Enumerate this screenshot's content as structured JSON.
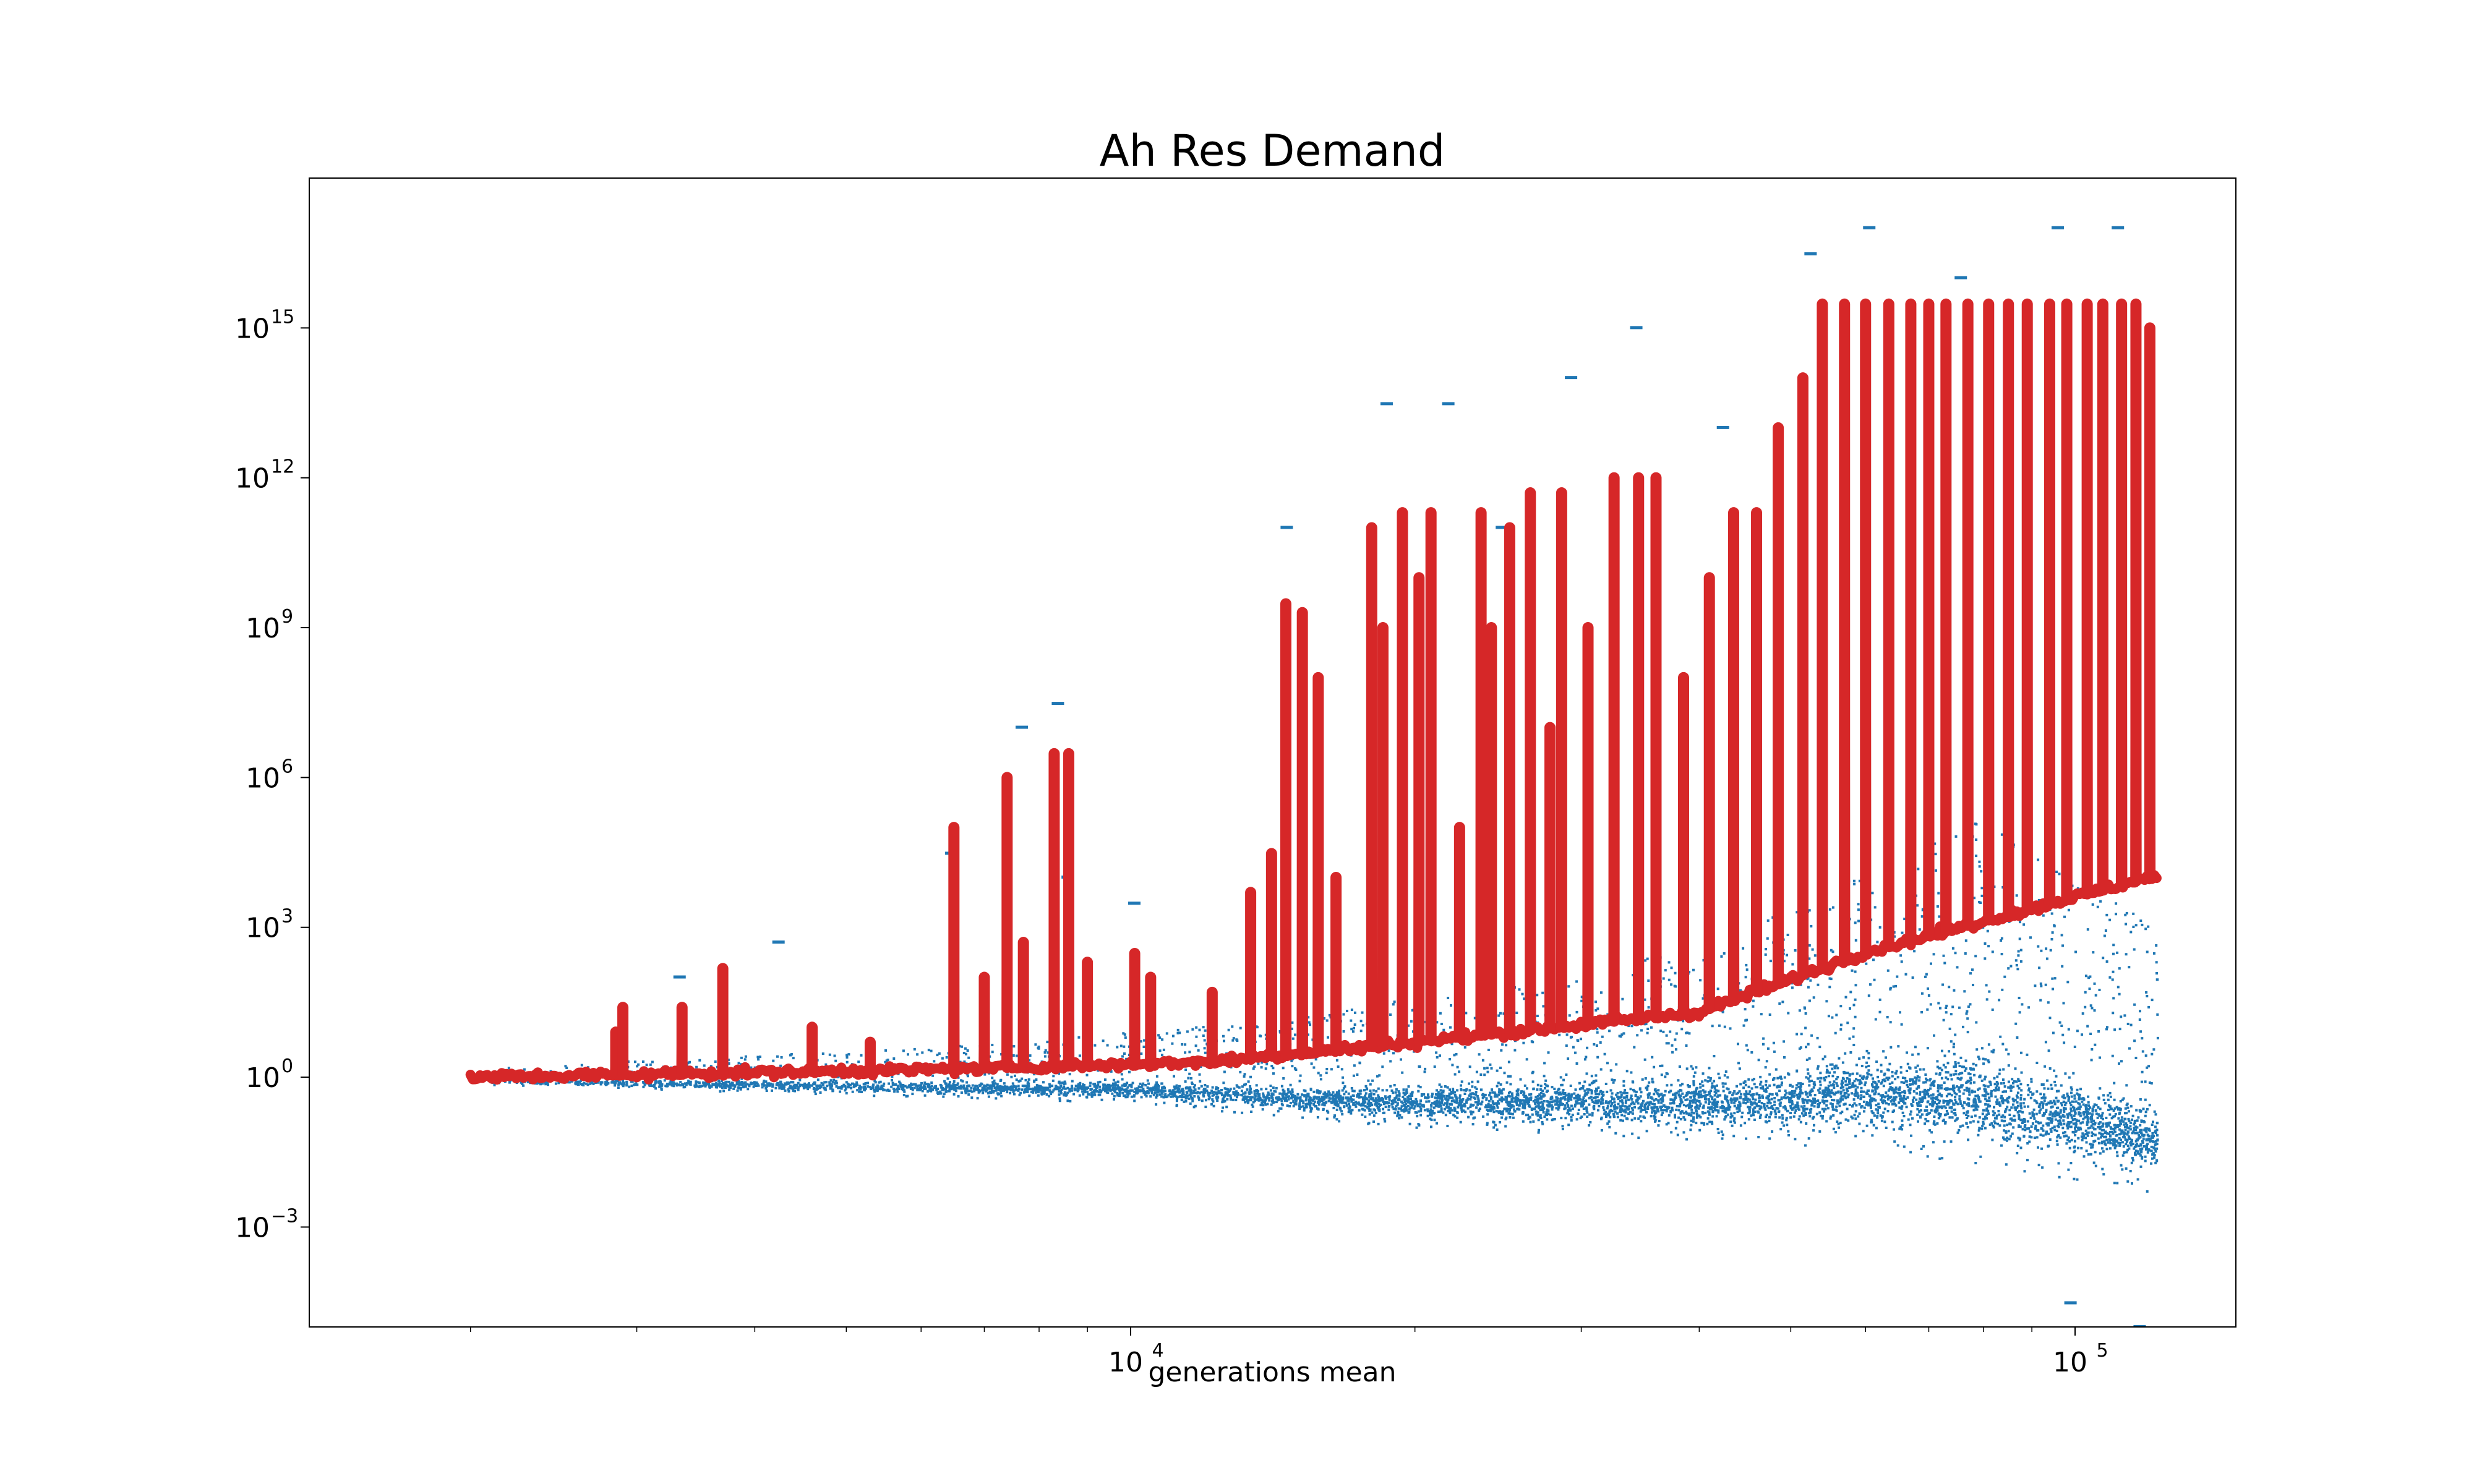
{
  "chart_data": {
    "type": "scatter",
    "title": "Ah Res Demand",
    "xlabel": "generations mean",
    "ylabel": "",
    "xscale": "log",
    "yscale": "log",
    "xlim": [
      1350,
      148000
    ],
    "ylim": [
      1e-05,
      1e+18
    ],
    "grid": false,
    "legend": "none",
    "x_ticks": [
      {
        "value": 10000,
        "base": "10",
        "exp": "4"
      },
      {
        "value": 100000,
        "base": "10",
        "exp": "5"
      }
    ],
    "y_ticks": [
      {
        "value": 0.001,
        "base": "10",
        "exp": "−3"
      },
      {
        "value": 1,
        "base": "10",
        "exp": "0"
      },
      {
        "value": 1000.0,
        "base": "10",
        "exp": "3"
      },
      {
        "value": 1000000.0,
        "base": "10",
        "exp": "6"
      },
      {
        "value": 1000000000.0,
        "base": "10",
        "exp": "9"
      },
      {
        "value": 1000000000000.0,
        "base": "10",
        "exp": "12"
      },
      {
        "value": 1000000000000000.0,
        "base": "10",
        "exp": "15"
      }
    ],
    "series": [
      {
        "kind": "scatter",
        "color": "#1f77b4",
        "x_range": [
          2000,
          122000
        ],
        "band_lower_log10": [
          [
            2000,
            -0.12
          ],
          [
            10000,
            -0.5
          ],
          [
            20000,
            -1.0
          ],
          [
            60000,
            -1.4
          ],
          [
            122000,
            -2.3
          ]
        ],
        "band_upper_log10": [
          [
            2000,
            0.2
          ],
          [
            6000,
            0.6
          ],
          [
            15000,
            1.2
          ],
          [
            40000,
            2.6
          ],
          [
            80000,
            5.2
          ],
          [
            122000,
            3.0
          ]
        ],
        "outliers": [
          {
            "x": 3300,
            "y": 100
          },
          {
            "x": 4200,
            "y": 500
          },
          {
            "x": 6400,
            "y": 30000
          },
          {
            "x": 7600,
            "y": 10000000
          },
          {
            "x": 8300,
            "y": 30000000
          },
          {
            "x": 8500,
            "y": 10000
          },
          {
            "x": 10000,
            "y": 3000
          },
          {
            "x": 14500,
            "y": 100000000000
          },
          {
            "x": 18500,
            "y": 30000000000000.0
          },
          {
            "x": 21500,
            "y": 30000000000000.0
          },
          {
            "x": 24500,
            "y": 100000000000.0
          },
          {
            "x": 29000,
            "y": 100000000000000.0
          },
          {
            "x": 34000,
            "y": 1000000000000000.0
          },
          {
            "x": 42000,
            "y": 10000000000000.0
          },
          {
            "x": 52000,
            "y": 3e+16
          },
          {
            "x": 60000,
            "y": 1e+17
          },
          {
            "x": 75000,
            "y": 1e+16
          },
          {
            "x": 95000,
            "y": 1e+17
          },
          {
            "x": 110000,
            "y": 1e+17
          },
          {
            "x": 98000,
            "y": 3e-05
          },
          {
            "x": 116000,
            "y": 1e-05
          }
        ]
      },
      {
        "kind": "line",
        "color": "#d62728",
        "baseline_log10": [
          [
            2000,
            0.0
          ],
          [
            6000,
            0.15
          ],
          [
            12000,
            0.3
          ],
          [
            20000,
            0.7
          ],
          [
            40000,
            1.3
          ],
          [
            60000,
            2.5
          ],
          [
            120000,
            4.0
          ]
        ],
        "spikes": [
          {
            "x": 2850,
            "y": 8
          },
          {
            "x": 2900,
            "y": 25
          },
          {
            "x": 3350,
            "y": 25
          },
          {
            "x": 3700,
            "y": 150
          },
          {
            "x": 4600,
            "y": 10
          },
          {
            "x": 5300,
            "y": 5
          },
          {
            "x": 6500,
            "y": 100000
          },
          {
            "x": 7000,
            "y": 100
          },
          {
            "x": 7400,
            "y": 1000000
          },
          {
            "x": 7700,
            "y": 500
          },
          {
            "x": 8300,
            "y": 3000000
          },
          {
            "x": 8600,
            "y": 3000000
          },
          {
            "x": 9000,
            "y": 200
          },
          {
            "x": 10100,
            "y": 300
          },
          {
            "x": 10500,
            "y": 100
          },
          {
            "x": 12200,
            "y": 50
          },
          {
            "x": 13400,
            "y": 5000
          },
          {
            "x": 14100,
            "y": 30000
          },
          {
            "x": 14600,
            "y": 3000000000.0
          },
          {
            "x": 15200,
            "y": 2000000000.0
          },
          {
            "x": 15800,
            "y": 100000000
          },
          {
            "x": 16500,
            "y": 10000
          },
          {
            "x": 18000,
            "y": 100000000000
          },
          {
            "x": 18500,
            "y": 1000000000.0
          },
          {
            "x": 19400,
            "y": 200000000000
          },
          {
            "x": 20200,
            "y": 10000000000.0
          },
          {
            "x": 20800,
            "y": 200000000000
          },
          {
            "x": 22300,
            "y": 100000
          },
          {
            "x": 23500,
            "y": 200000000000
          },
          {
            "x": 24100,
            "y": 1000000000.0
          },
          {
            "x": 25200,
            "y": 100000000000
          },
          {
            "x": 26500,
            "y": 500000000000
          },
          {
            "x": 27800,
            "y": 10000000
          },
          {
            "x": 28600,
            "y": 500000000000
          },
          {
            "x": 30500,
            "y": 1000000000.0
          },
          {
            "x": 32500,
            "y": 1000000000000.0
          },
          {
            "x": 34500,
            "y": 1000000000000.0
          },
          {
            "x": 36000,
            "y": 1000000000000.0
          },
          {
            "x": 38500,
            "y": 100000000
          },
          {
            "x": 41000,
            "y": 10000000000
          },
          {
            "x": 43500,
            "y": 200000000000
          },
          {
            "x": 46000,
            "y": 200000000000
          },
          {
            "x": 48500,
            "y": 10000000000000.0
          },
          {
            "x": 51500,
            "y": 100000000000000.0
          },
          {
            "x": 54000,
            "y": 3000000000000000.0
          },
          {
            "x": 57000,
            "y": 3000000000000000.0
          },
          {
            "x": 60000,
            "y": 3000000000000000.0
          },
          {
            "x": 63500,
            "y": 3000000000000000.0
          },
          {
            "x": 67000,
            "y": 3000000000000000.0
          },
          {
            "x": 70000,
            "y": 3000000000000000.0
          },
          {
            "x": 73000,
            "y": 3000000000000000.0
          },
          {
            "x": 77000,
            "y": 3000000000000000.0
          },
          {
            "x": 81000,
            "y": 3000000000000000.0
          },
          {
            "x": 85000,
            "y": 3000000000000000.0
          },
          {
            "x": 89000,
            "y": 3000000000000000.0
          },
          {
            "x": 94000,
            "y": 3000000000000000.0
          },
          {
            "x": 98000,
            "y": 3000000000000000.0
          },
          {
            "x": 103000,
            "y": 3000000000000000.0
          },
          {
            "x": 107000,
            "y": 3000000000000000.0
          },
          {
            "x": 112000,
            "y": 3000000000000000.0
          },
          {
            "x": 116000,
            "y": 3000000000000000.0
          },
          {
            "x": 120000,
            "y": 1000000000000000.0
          }
        ]
      }
    ]
  }
}
